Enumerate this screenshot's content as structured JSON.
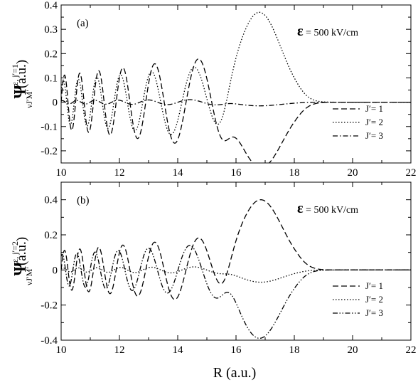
{
  "chart_data": [
    {
      "type": "line",
      "panel_label": "(a)",
      "field_symbol": "ε",
      "field_value": " = 500 kV/cm",
      "ylabel": {
        "psi": "Ψ",
        "sup": "ε, j′=1",
        "sub": "νJ′M′",
        "unit": "(a.u.)"
      },
      "xlim": [
        10,
        22
      ],
      "ylim": [
        -0.25,
        0.4
      ],
      "xticks": [
        "10",
        "12",
        "14",
        "16",
        "18",
        "20",
        "22"
      ],
      "yticks": [
        "-0.2",
        "-0.1",
        "0",
        "0.1",
        "0.2",
        "0.3",
        "0.4"
      ],
      "legend_position": "lower-right",
      "series": [
        {
          "name": "J′= 1",
          "style": "dashed",
          "amp": 0.2,
          "peak_R": 16.85,
          "peak_value": -0.27
        },
        {
          "name": "J′= 2",
          "style": "dotted",
          "amp": 0.16,
          "peak_R": 16.8,
          "peak_value": 0.37
        },
        {
          "name": "J′= 3",
          "style": "dash-dot",
          "amp": 0.012,
          "peak_R": 16.8,
          "peak_value": -0.015
        }
      ]
    },
    {
      "type": "line",
      "panel_label": "(b)",
      "field_symbol": "ε",
      "field_value": " = 500 kV/cm",
      "ylabel": {
        "psi": "Ψ",
        "sup": "ε, j′=2",
        "sub": "νJ′M′",
        "unit": "(a.u.)"
      },
      "xlim": [
        10,
        22
      ],
      "ylim": [
        -0.4,
        0.5
      ],
      "xticks": [
        "10",
        "12",
        "14",
        "16",
        "18",
        "20",
        "22"
      ],
      "yticks": [
        "-0.4",
        "-0.2",
        "0",
        "0.2",
        "0.4"
      ],
      "legend_position": "lower-right",
      "series": [
        {
          "name": "J′= 1",
          "style": "dashed",
          "amp": 0.2,
          "peak_R": 16.85,
          "peak_value": 0.4
        },
        {
          "name": "J′= 2",
          "style": "dotted",
          "amp": 0.02,
          "peak_R": 16.85,
          "peak_value": -0.07
        },
        {
          "name": "J′= 3",
          "style": "dash-dot-dot",
          "amp": 0.16,
          "peak_R": 16.8,
          "peak_value": -0.39
        }
      ]
    }
  ],
  "xlabel": "R (a.u.)"
}
